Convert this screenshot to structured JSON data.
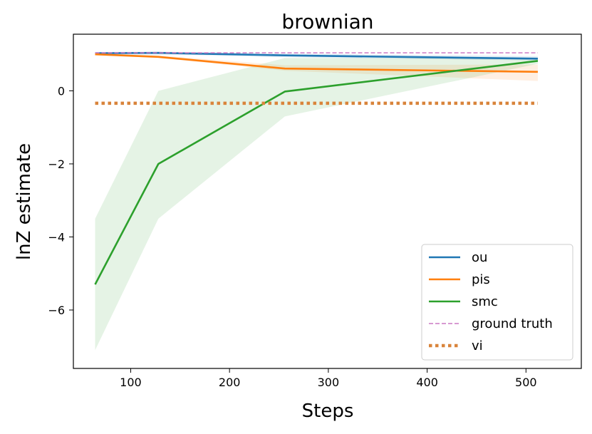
{
  "chart_data": {
    "type": "line",
    "title": "brownian",
    "xlabel": "Steps",
    "ylabel": "lnZ estimate",
    "xlim": [
      42,
      556
    ],
    "ylim": [
      -7.6,
      1.55
    ],
    "xticks": [
      100,
      200,
      300,
      400,
      500
    ],
    "yticks": [
      0,
      -2,
      -4,
      -6
    ],
    "ytick_labels": [
      "0",
      "−2",
      "−4",
      "−6"
    ],
    "grid": false,
    "legend_position": "lower-right",
    "series": [
      {
        "name": "ou",
        "color": "#1f77b4",
        "style": "solid",
        "x": [
          64,
          128,
          256,
          512
        ],
        "y": [
          1.03,
          1.04,
          0.97,
          0.88
        ],
        "band_low": [
          1.0,
          1.0,
          0.92,
          0.83
        ],
        "band_high": [
          1.06,
          1.07,
          1.02,
          0.95
        ],
        "band_color": "#1f77b4"
      },
      {
        "name": "pis",
        "color": "#ff7f0e",
        "style": "solid",
        "x": [
          64,
          128,
          256,
          512
        ],
        "y": [
          1.0,
          0.93,
          0.61,
          0.52
        ],
        "band_low": [
          0.98,
          0.9,
          0.55,
          0.27
        ],
        "band_high": [
          1.02,
          0.97,
          0.7,
          0.72
        ],
        "band_color": "#ff7f0e"
      },
      {
        "name": "smc",
        "color": "#2ca02c",
        "style": "solid",
        "x": [
          64,
          128,
          256,
          512
        ],
        "y": [
          -5.3,
          -2.0,
          -0.02,
          0.82
        ],
        "band_low": [
          -7.1,
          -3.5,
          -0.7,
          0.74
        ],
        "band_high": [
          -3.5,
          0.0,
          0.9,
          0.9
        ],
        "band_color": "#2ca02c"
      },
      {
        "name": "ground truth",
        "color": "#cc79c4",
        "style": "dashed",
        "x": [
          64,
          512
        ],
        "y": [
          1.04,
          1.04
        ]
      },
      {
        "name": "vi",
        "color": "#d9843b",
        "style": "dotted",
        "x": [
          64,
          512
        ],
        "y": [
          -0.34,
          -0.34
        ]
      }
    ]
  }
}
